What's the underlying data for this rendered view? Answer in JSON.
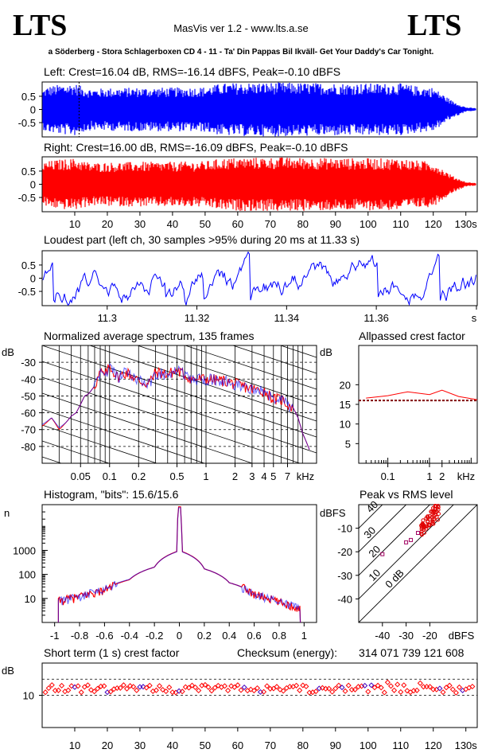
{
  "header": {
    "logo_left": "LTS",
    "logo_right": "LTS",
    "app_title": "MasVis ver 1.2 - www.lts.a.se",
    "track": "a Söderberg - Stora Schlagerboxen CD 4 - 11 - Ta' Din Pappas Bil Ikväll- Get Your Daddy's Car Tonight."
  },
  "chart_data": [
    {
      "id": "left",
      "type": "area",
      "title": "Left: Crest=16.04 dB, RMS=-16.14 dBFS, Peak=-0.10 dBFS",
      "color": "#0000ff",
      "ylim": [
        -1,
        1
      ],
      "yticks": [
        "0.5",
        "0",
        "-0.5"
      ],
      "marker_x_s": 11.33,
      "duration_s": 133,
      "envelope": {
        "t": [
          0,
          1,
          2,
          5,
          10,
          12,
          15,
          20,
          30,
          40,
          50,
          55,
          60,
          65,
          70,
          72,
          80,
          90,
          100,
          110,
          115,
          120,
          123,
          126,
          128,
          130,
          133
        ],
        "amp": [
          0.7,
          0.8,
          0.85,
          0.9,
          0.95,
          0.85,
          0.75,
          0.78,
          0.8,
          0.8,
          0.82,
          0.95,
          0.97,
          0.98,
          0.98,
          0.99,
          0.97,
          0.96,
          0.95,
          0.95,
          0.85,
          0.8,
          0.55,
          0.3,
          0.2,
          0.08,
          0.05
        ]
      }
    },
    {
      "id": "right",
      "type": "area",
      "title": "Right: Crest=16.00 dB, RMS=-16.09 dBFS, Peak=-0.10 dBFS",
      "color": "#ff0000",
      "ylim": [
        -1,
        1
      ],
      "yticks": [
        "0.5",
        "0",
        "-0.5"
      ],
      "xticks": [
        "10",
        "20",
        "30",
        "40",
        "50",
        "60",
        "70",
        "80",
        "90",
        "100",
        "110",
        "120",
        "130s"
      ],
      "duration_s": 133,
      "envelope": {
        "t": [
          0,
          1,
          2,
          5,
          10,
          12,
          15,
          20,
          30,
          40,
          50,
          55,
          60,
          65,
          70,
          72,
          80,
          90,
          100,
          110,
          115,
          120,
          123,
          126,
          128,
          130,
          133
        ],
        "amp": [
          0.72,
          0.82,
          0.85,
          0.9,
          0.95,
          0.88,
          0.78,
          0.8,
          0.82,
          0.82,
          0.84,
          0.95,
          0.97,
          0.98,
          0.98,
          0.99,
          0.97,
          0.96,
          0.95,
          0.95,
          0.87,
          0.82,
          0.55,
          0.3,
          0.2,
          0.08,
          0.05
        ]
      }
    },
    {
      "id": "loudest",
      "type": "line",
      "title": "Loudest part (left  ch, 30 samples >95% during 20 ms at 11.33 s)",
      "color": "#0000ff",
      "xlim": [
        11.2855,
        11.3825
      ],
      "xticks": [
        "11.3",
        "11.32",
        "11.34",
        "11.36",
        "s"
      ],
      "ylim": [
        -1,
        1
      ],
      "yticks": [
        "0.5",
        "0",
        "-0.5"
      ]
    },
    {
      "id": "spectrum",
      "type": "line",
      "title": "Normalized average spectrum, 135 frames",
      "ylabel": "dB",
      "xlabel": "kHz",
      "xticks": [
        "0.05",
        "0.1",
        "0.2",
        "0.5",
        "1",
        "2",
        "3",
        "4",
        "5",
        "7"
      ],
      "yticks": [
        "-30",
        "-40",
        "-50",
        "-60",
        "-70",
        "-80"
      ],
      "ylim": [
        -90,
        -20
      ],
      "series": [
        {
          "color": "#ff0000",
          "x_khz": [
            0.02,
            0.025,
            0.03,
            0.035,
            0.04,
            0.045,
            0.05,
            0.055,
            0.06,
            0.07,
            0.08,
            0.09,
            0.1,
            0.12,
            0.15,
            0.2,
            0.25,
            0.3,
            0.4,
            0.5,
            0.7,
            1,
            1.5,
            2,
            3,
            4,
            5,
            6,
            7,
            8,
            9,
            10,
            12
          ],
          "db": [
            -68,
            -63,
            -70,
            -66,
            -62,
            -60,
            -55,
            -50,
            -49,
            -44,
            -36,
            -38,
            -32,
            -39,
            -36,
            -41,
            -43,
            -36,
            -37,
            -35,
            -40,
            -40,
            -41,
            -43,
            -46,
            -47,
            -52,
            -52,
            -55,
            -57,
            -63,
            -72,
            -83
          ]
        },
        {
          "color": "#0000ff",
          "x_khz": [
            0.02,
            0.025,
            0.03,
            0.035,
            0.04,
            0.045,
            0.05,
            0.055,
            0.06,
            0.07,
            0.08,
            0.09,
            0.1,
            0.12,
            0.15,
            0.2,
            0.25,
            0.3,
            0.4,
            0.5,
            0.7,
            1,
            1.5,
            2,
            3,
            4,
            5,
            6,
            7,
            8,
            9,
            10,
            12
          ],
          "db": [
            -67,
            -63,
            -69,
            -66,
            -62,
            -60,
            -55,
            -50,
            -49,
            -44,
            -37,
            -38,
            -33,
            -39,
            -36,
            -41,
            -43,
            -37,
            -37,
            -35,
            -40,
            -40,
            -41,
            -43,
            -46,
            -47,
            -52,
            -52,
            -55,
            -57,
            -63,
            -72,
            -83
          ]
        }
      ]
    },
    {
      "id": "allpass",
      "type": "line",
      "title": "Allpassed crest factor",
      "ylabel": "dB",
      "xlabel": "kHz",
      "xticks": [
        "0.1",
        "1",
        "2"
      ],
      "yticks": [
        "20",
        "15",
        "10",
        "5"
      ],
      "ylim": [
        0,
        30
      ],
      "reference_db": 16,
      "series": [
        {
          "color": "#ff0000",
          "x_khz": [
            0.03,
            0.1,
            0.3,
            1,
            2,
            5,
            14
          ],
          "db": [
            16.6,
            17.2,
            18.2,
            17.5,
            18.6,
            17.0,
            16.2
          ]
        }
      ]
    },
    {
      "id": "histogram",
      "type": "line",
      "title": "Histogram, \"bits\": 15.6/15.6",
      "ylabel": "n",
      "yscale": "log",
      "xticks": [
        "-1",
        "-0.8",
        "-0.6",
        "-0.4",
        "-0.2",
        "0",
        "0.2",
        "0.4",
        "0.6",
        "0.8",
        "1"
      ],
      "yticks": [
        "1000",
        "100",
        "10"
      ],
      "series": [
        {
          "color": "#ff0000",
          "x": [
            -0.96,
            -0.8,
            -0.6,
            -0.4,
            -0.2,
            -0.02,
            0,
            0.02,
            0.2,
            0.4,
            0.6,
            0.8,
            0.96
          ],
          "n": [
            8,
            12,
            22,
            60,
            200,
            900,
            65000,
            900,
            170,
            45,
            15,
            7,
            4
          ]
        },
        {
          "color": "#0000ff",
          "x": [
            -0.96,
            -0.8,
            -0.6,
            -0.4,
            -0.2,
            -0.02,
            0,
            0.02,
            0.2,
            0.4,
            0.6,
            0.8,
            0.96
          ],
          "n": [
            8,
            12,
            24,
            62,
            200,
            880,
            60000,
            880,
            170,
            45,
            15,
            7,
            4
          ]
        }
      ]
    },
    {
      "id": "peakrms",
      "type": "scatter",
      "title": "Peak vs RMS level",
      "ylabel": "dBFS",
      "xlabel": "dBFS",
      "xticks": [
        "-40",
        "-30",
        "-20"
      ],
      "yticks": [
        "-10",
        "-20",
        "-30",
        "-40"
      ],
      "xlim": [
        -50,
        0
      ],
      "ylim": [
        -50,
        0
      ],
      "crest_lines": [
        "40",
        "30",
        "20",
        "10",
        "0 dB"
      ]
    },
    {
      "id": "shortcrest",
      "type": "scatter",
      "title": "Short term (1 s) crest factor",
      "checksum_label": "Checksum (energy):",
      "checksum": "314 071 739 121 608",
      "ylabel": "dB",
      "yticks": [
        "10"
      ],
      "xticks": [
        "10",
        "20",
        "30",
        "40",
        "50",
        "60",
        "70",
        "80",
        "90",
        "100",
        "110",
        "120",
        "130s"
      ],
      "ylim": [
        0,
        20
      ],
      "dashed_db": [
        10,
        15
      ]
    }
  ]
}
